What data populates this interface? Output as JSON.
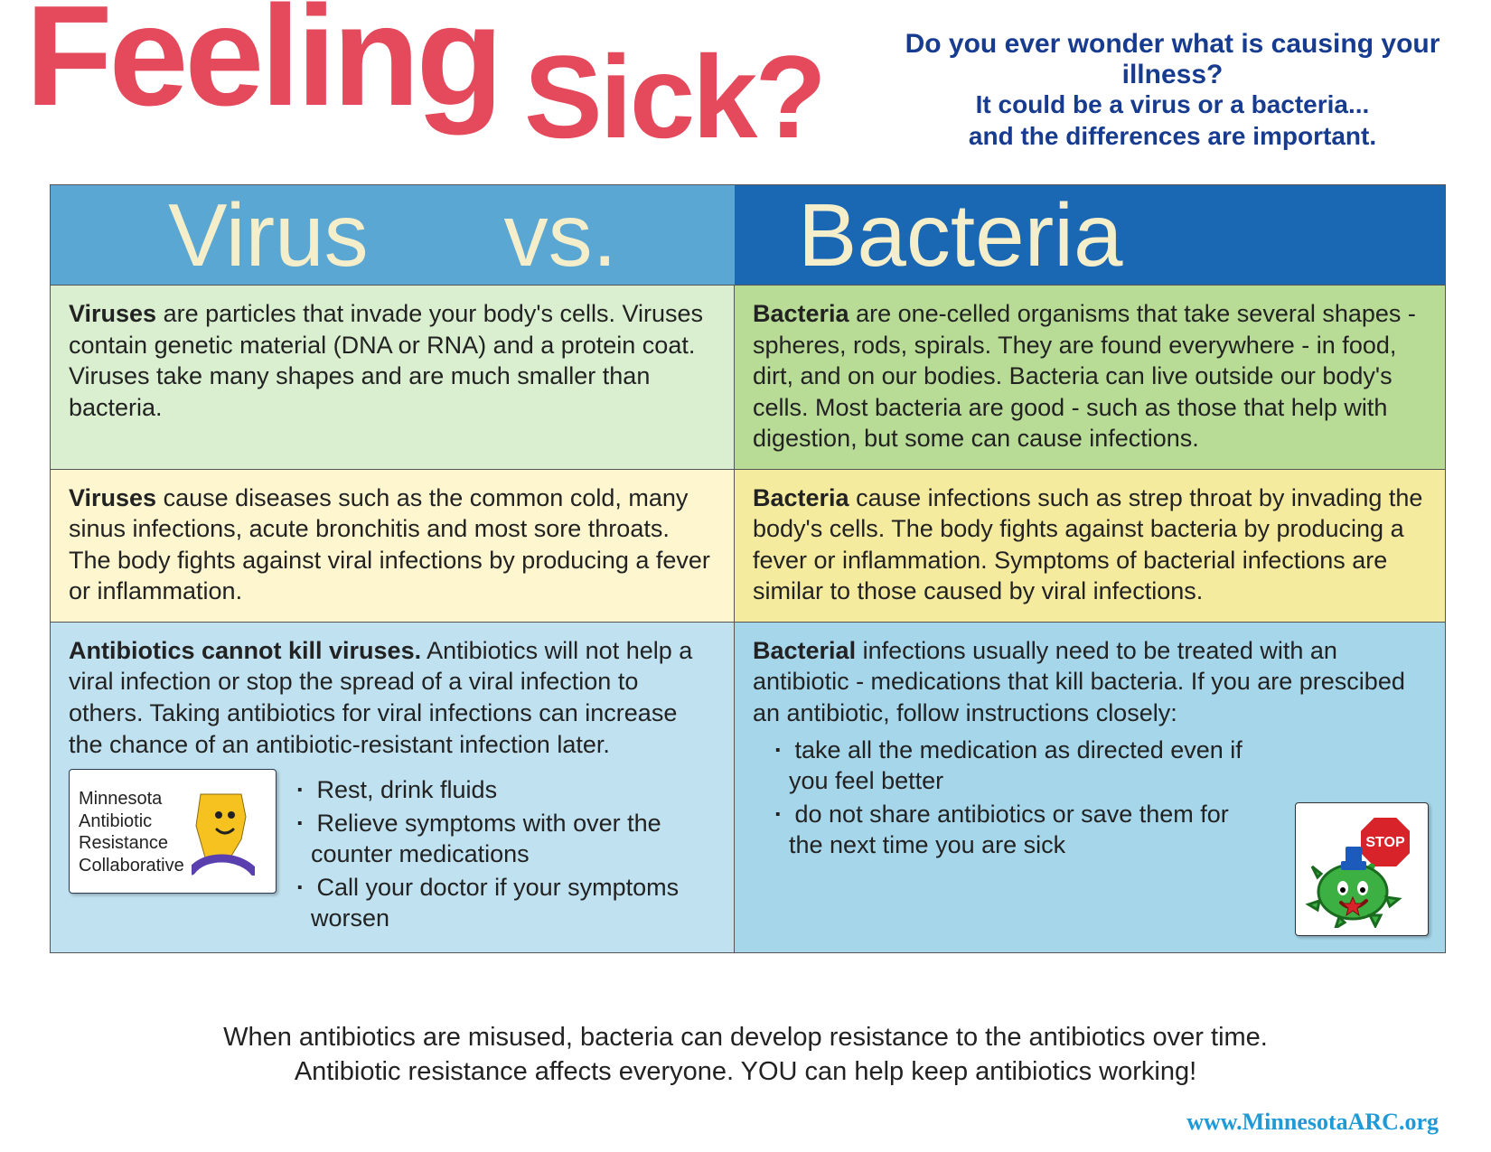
{
  "colors": {
    "title_red": "#e44a5c",
    "subtitle_blue": "#163b8f",
    "hdr_left_bg": "#5aa7d3",
    "hdr_right_bg": "#1a68b3",
    "hdr_text": "#f5eecb",
    "row1_left_bg": "#d9efcf",
    "row1_right_bg": "#b8dc96",
    "row2_left_bg": "#fdf6cf",
    "row2_right_bg": "#f5eb9f",
    "row3_left_bg": "#c0e1ef",
    "row3_right_bg": "#a6d6ea",
    "url_color": "#1f9ad6"
  },
  "title": {
    "feeling": "Feeling",
    "sick": "Sick?"
  },
  "subtitle1": "Do you ever wonder what is causing your illness?",
  "subtitle2": "It could be a virus or a bacteria...\nand the differences are important.",
  "header": {
    "virus": "Virus",
    "vs": "vs.",
    "bacteria": "Bacteria"
  },
  "row1": {
    "virus_bold": "Viruses",
    "virus_text": " are particles that invade your body's cells. Viruses contain genetic material (DNA or RNA) and a protein coat. Viruses take many shapes and are much smaller than bacteria.",
    "bact_bold": "Bacteria",
    "bact_text": " are one-celled organisms that take several shapes - spheres, rods, spirals. They are found everywhere - in food, dirt, and on our bodies. Bacteria can live outside our body's cells.  Most bacteria are good - such as those that help with digestion, but some can cause infections."
  },
  "row2": {
    "virus_bold": "Viruses",
    "virus_text": " cause diseases such as the common cold, many sinus infections, acute bronchitis and most sore throats. The body fights against viral infections by producing a fever or inflammation.",
    "bact_bold": "Bacteria",
    "bact_text": " cause infections such as strep throat by invading the body's cells. The body fights against bacteria by producing a fever or inflammation.  Symptoms of bacterial infections are similar to those caused by viral infections."
  },
  "row3": {
    "virus_bold": "Antibiotics cannot kill viruses.",
    "virus_text": " Antibiotics will not help a viral infection or stop the spread of a viral infection to others. Taking antibiotics for viral infections can increase the chance of an antibiotic-resistant infection later.",
    "virus_bullets": [
      "Rest, drink fluids",
      "Relieve symptoms with over the counter medications",
      "Call your doctor if your symptoms worsen"
    ],
    "bact_bold": "Bacterial",
    "bact_text": " infections usually need to be treated with an antibiotic - medications that kill bacteria.  If you are prescibed an antibiotic, follow instructions closely:",
    "bact_bullets": [
      "take all the medication as directed even if you feel better",
      "do not share antibiotics or save them for the next time you are sick"
    ]
  },
  "marc": {
    "l1": "Minnesota",
    "l2": "Antibiotic",
    "l3": "Resistance",
    "l4": "Collaborative"
  },
  "footer": "When antibiotics are misused, bacteria can develop resistance to the antibiotics over time.\nAntibiotic resistance affects everyone.  YOU can help keep antibiotics working!",
  "url": "www.MinnesotaARC.org"
}
